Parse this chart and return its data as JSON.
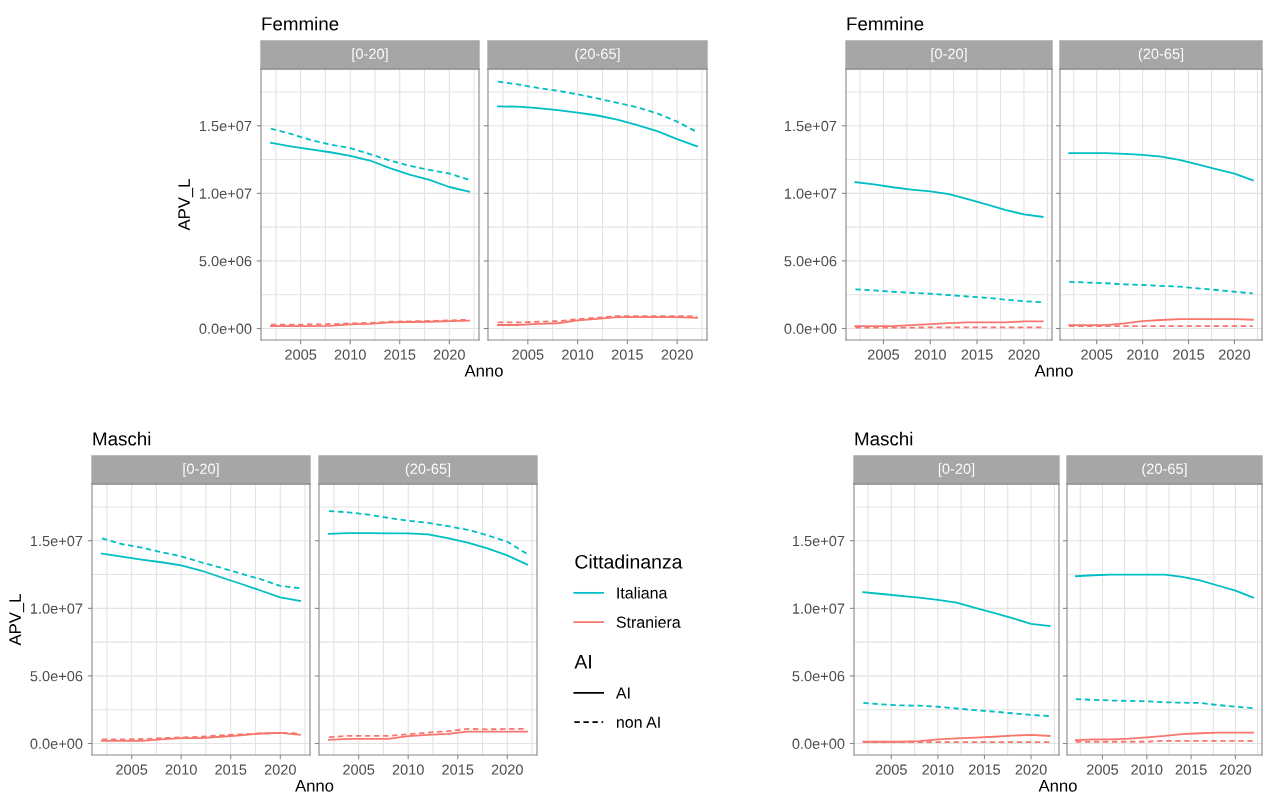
{
  "chart_data": [
    {
      "type": "line",
      "title": "Femmine",
      "subtitle": "[0-20]",
      "xlabel": "Anno",
      "ylabel": "APV_L",
      "x": [
        2002,
        2004,
        2006,
        2008,
        2010,
        2012,
        2014,
        2016,
        2018,
        2020,
        2022
      ],
      "xlim": [
        2001,
        2023
      ],
      "xticks": [
        2005,
        2010,
        2015,
        2020
      ],
      "ylim": [
        -850000,
        19200000
      ],
      "yticks": [
        {
          "value": 0,
          "label": "0.0e+00"
        },
        {
          "value": 5000000,
          "label": "5.0e+06"
        },
        {
          "value": 10000000,
          "label": "1.0e+07"
        },
        {
          "value": 15000000,
          "label": "1.5e+07"
        }
      ],
      "grid": true,
      "series": [
        {
          "color": "#00bfc4",
          "line_style": "solid",
          "values": [
            13740000,
            13480000,
            13250000,
            13040000,
            12770000,
            12430000,
            11860000,
            11390000,
            11000000,
            10470000,
            10130000
          ]
        },
        {
          "color": "#00bfc4",
          "line_style": "dashed",
          "values": [
            14790000,
            14400000,
            13950000,
            13610000,
            13350000,
            12900000,
            12430000,
            12040000,
            11730000,
            11470000,
            11000000
          ]
        },
        {
          "color": "#f8766d",
          "line_style": "solid",
          "values": [
            180000,
            180000,
            180000,
            200000,
            300000,
            350000,
            450000,
            480000,
            500000,
            550000,
            580000
          ]
        },
        {
          "color": "#f8766d",
          "line_style": "dashed",
          "values": [
            280000,
            280000,
            300000,
            320000,
            380000,
            420000,
            500000,
            530000,
            560000,
            600000,
            650000
          ]
        }
      ]
    },
    {
      "type": "line",
      "subtitle": "(20-65]",
      "x": [
        2002,
        2004,
        2006,
        2008,
        2010,
        2012,
        2014,
        2016,
        2018,
        2020,
        2022
      ],
      "xlim": [
        2001,
        2023
      ],
      "xticks": [
        2005,
        2010,
        2015,
        2020
      ],
      "ylim": [
        -850000,
        19200000
      ],
      "yticks": [
        0,
        5000000,
        10000000,
        15000000
      ],
      "tick_labels": "x",
      "grid": true,
      "series": [
        {
          "color": "#00bfc4",
          "line_style": "solid",
          "values": [
            16440000,
            16410000,
            16310000,
            16150000,
            15970000,
            15760000,
            15450000,
            15050000,
            14610000,
            14010000,
            13480000
          ]
        },
        {
          "color": "#00bfc4",
          "line_style": "dashed",
          "values": [
            18270000,
            18060000,
            17800000,
            17590000,
            17330000,
            17020000,
            16700000,
            16360000,
            15920000,
            15310000,
            14530000
          ]
        },
        {
          "color": "#f8766d",
          "line_style": "solid",
          "values": [
            260000,
            260000,
            340000,
            390000,
            600000,
            710000,
            840000,
            840000,
            840000,
            840000,
            790000
          ]
        },
        {
          "color": "#f8766d",
          "line_style": "dashed",
          "values": [
            450000,
            450000,
            500000,
            550000,
            680000,
            800000,
            920000,
            920000,
            920000,
            920000,
            900000
          ]
        }
      ]
    },
    {
      "type": "line",
      "title": "Femmine",
      "subtitle": "[0-20]",
      "xlabel": "Anno",
      "x": [
        2002,
        2004,
        2006,
        2008,
        2010,
        2012,
        2014,
        2016,
        2018,
        2020,
        2022
      ],
      "xlim": [
        2001,
        2023
      ],
      "xticks": [
        2005,
        2010,
        2015,
        2020
      ],
      "ylim": [
        -850000,
        19200000
      ],
      "yticks": [
        {
          "value": 0,
          "label": "0.0e+00"
        },
        {
          "value": 5000000,
          "label": "5.0e+06"
        },
        {
          "value": 10000000,
          "label": "1.0e+07"
        },
        {
          "value": 15000000,
          "label": "1.5e+07"
        }
      ],
      "grid": true,
      "series": [
        {
          "color": "#00bfc4",
          "line_style": "solid",
          "values": [
            10830000,
            10660000,
            10450000,
            10280000,
            10150000,
            9950000,
            9570000,
            9190000,
            8770000,
            8440000,
            8260000
          ]
        },
        {
          "color": "#00bfc4",
          "line_style": "dashed",
          "values": [
            2900000,
            2820000,
            2720000,
            2640000,
            2570000,
            2470000,
            2370000,
            2270000,
            2140000,
            2020000,
            1940000
          ]
        },
        {
          "color": "#f8766d",
          "line_style": "solid",
          "values": [
            180000,
            180000,
            180000,
            250000,
            330000,
            400000,
            450000,
            450000,
            450000,
            530000,
            530000
          ]
        },
        {
          "color": "#f8766d",
          "line_style": "dashed",
          "values": [
            70000,
            70000,
            70000,
            70000,
            80000,
            80000,
            80000,
            80000,
            80000,
            80000,
            80000
          ]
        }
      ]
    },
    {
      "type": "line",
      "subtitle": "(20-65]",
      "x": [
        2002,
        2004,
        2006,
        2008,
        2010,
        2012,
        2014,
        2016,
        2018,
        2020,
        2022
      ],
      "xlim": [
        2001,
        2023
      ],
      "xticks": [
        2005,
        2010,
        2015,
        2020
      ],
      "ylim": [
        -850000,
        19200000
      ],
      "yticks": [
        0,
        5000000,
        10000000,
        15000000
      ],
      "tick_labels": "x",
      "grid": true,
      "series": [
        {
          "color": "#00bfc4",
          "line_style": "solid",
          "values": [
            12970000,
            12970000,
            12970000,
            12920000,
            12850000,
            12720000,
            12470000,
            12150000,
            11790000,
            11460000,
            10960000
          ]
        },
        {
          "color": "#00bfc4",
          "line_style": "dashed",
          "values": [
            3450000,
            3400000,
            3350000,
            3270000,
            3220000,
            3150000,
            3100000,
            2970000,
            2850000,
            2720000,
            2600000
          ]
        },
        {
          "color": "#f8766d",
          "line_style": "solid",
          "values": [
            250000,
            250000,
            250000,
            380000,
            550000,
            630000,
            700000,
            700000,
            700000,
            700000,
            650000
          ]
        },
        {
          "color": "#f8766d",
          "line_style": "dashed",
          "values": [
            180000,
            180000,
            180000,
            180000,
            180000,
            180000,
            180000,
            180000,
            180000,
            180000,
            180000
          ]
        }
      ]
    },
    {
      "type": "line",
      "title": "Maschi",
      "subtitle": "[0-20]",
      "xlabel": "Anno",
      "ylabel": "APV_L",
      "x": [
        2002,
        2004,
        2006,
        2008,
        2010,
        2012,
        2014,
        2016,
        2018,
        2020,
        2022
      ],
      "xlim": [
        2001,
        2023
      ],
      "xticks": [
        2005,
        2010,
        2015,
        2020
      ],
      "ylim": [
        -850000,
        19200000
      ],
      "yticks": [
        {
          "value": 0,
          "label": "0.0e+00"
        },
        {
          "value": 5000000,
          "label": "5.0e+06"
        },
        {
          "value": 10000000,
          "label": "1.0e+07"
        },
        {
          "value": 15000000,
          "label": "1.5e+07"
        }
      ],
      "grid": true,
      "series": [
        {
          "color": "#00bfc4",
          "line_style": "solid",
          "values": [
            14050000,
            13820000,
            13610000,
            13410000,
            13180000,
            12800000,
            12300000,
            11820000,
            11320000,
            10810000,
            10540000
          ]
        },
        {
          "color": "#00bfc4",
          "line_style": "dashed",
          "values": [
            15170000,
            14760000,
            14490000,
            14160000,
            13850000,
            13410000,
            13010000,
            12570000,
            12160000,
            11660000,
            11490000
          ]
        },
        {
          "color": "#f8766d",
          "line_style": "solid",
          "values": [
            200000,
            200000,
            200000,
            300000,
            400000,
            400000,
            500000,
            600000,
            740000,
            780000,
            640000
          ]
        },
        {
          "color": "#f8766d",
          "line_style": "dashed",
          "values": [
            300000,
            300000,
            330000,
            400000,
            450000,
            500000,
            600000,
            680000,
            740000,
            780000,
            740000
          ]
        }
      ]
    },
    {
      "type": "line",
      "subtitle": "(20-65]",
      "x": [
        2002,
        2004,
        2006,
        2008,
        2010,
        2012,
        2014,
        2016,
        2018,
        2020,
        2022
      ],
      "xlim": [
        2001,
        2023
      ],
      "xticks": [
        2005,
        2010,
        2015,
        2020
      ],
      "ylim": [
        -850000,
        19200000
      ],
      "yticks": [
        0,
        5000000,
        10000000,
        15000000
      ],
      "tick_labels": "x",
      "grid": true,
      "series": [
        {
          "color": "#00bfc4",
          "line_style": "solid",
          "values": [
            15510000,
            15570000,
            15570000,
            15540000,
            15540000,
            15470000,
            15200000,
            14860000,
            14430000,
            13920000,
            13240000
          ]
        },
        {
          "color": "#00bfc4",
          "line_style": "dashed",
          "values": [
            17200000,
            17100000,
            16930000,
            16690000,
            16490000,
            16320000,
            16080000,
            15810000,
            15410000,
            14930000,
            14020000
          ]
        },
        {
          "color": "#f8766d",
          "line_style": "solid",
          "values": [
            270000,
            340000,
            340000,
            340000,
            540000,
            640000,
            710000,
            880000,
            880000,
            880000,
            880000
          ]
        },
        {
          "color": "#f8766d",
          "line_style": "dashed",
          "values": [
            470000,
            570000,
            570000,
            570000,
            680000,
            810000,
            910000,
            1080000,
            1050000,
            1080000,
            1080000
          ]
        }
      ]
    },
    {
      "type": "line",
      "title": "Maschi",
      "subtitle": "[0-20]",
      "xlabel": "Anno",
      "x": [
        2002,
        2004,
        2006,
        2008,
        2010,
        2012,
        2014,
        2016,
        2018,
        2020,
        2022
      ],
      "xlim": [
        2001,
        2023
      ],
      "xticks": [
        2005,
        2010,
        2015,
        2020
      ],
      "ylim": [
        -850000,
        19200000
      ],
      "yticks": [
        {
          "value": 0,
          "label": "0.0e+00"
        },
        {
          "value": 5000000,
          "label": "5.0e+06"
        },
        {
          "value": 10000000,
          "label": "1.0e+07"
        },
        {
          "value": 15000000,
          "label": "1.5e+07"
        }
      ],
      "grid": true,
      "series": [
        {
          "color": "#00bfc4",
          "line_style": "solid",
          "values": [
            11190000,
            11060000,
            10930000,
            10800000,
            10620000,
            10420000,
            10040000,
            9660000,
            9280000,
            8850000,
            8690000
          ]
        },
        {
          "color": "#00bfc4",
          "line_style": "dashed",
          "values": [
            3000000,
            2900000,
            2820000,
            2800000,
            2720000,
            2590000,
            2470000,
            2360000,
            2240000,
            2110000,
            2030000
          ]
        },
        {
          "color": "#f8766d",
          "line_style": "solid",
          "values": [
            130000,
            130000,
            130000,
            180000,
            300000,
            380000,
            430000,
            500000,
            580000,
            640000,
            560000
          ]
        },
        {
          "color": "#f8766d",
          "line_style": "dashed",
          "values": [
            100000,
            100000,
            100000,
            100000,
            100000,
            100000,
            100000,
            100000,
            100000,
            100000,
            100000
          ]
        }
      ]
    },
    {
      "type": "line",
      "subtitle": "(20-65]",
      "x": [
        2002,
        2004,
        2006,
        2008,
        2010,
        2012,
        2014,
        2016,
        2018,
        2020,
        2022
      ],
      "xlim": [
        2001,
        2023
      ],
      "xticks": [
        2005,
        2010,
        2015,
        2020
      ],
      "ylim": [
        -850000,
        19200000
      ],
      "yticks": [
        0,
        5000000,
        10000000,
        15000000
      ],
      "tick_labels": "x",
      "grid": true,
      "series": [
        {
          "color": "#00bfc4",
          "line_style": "solid",
          "values": [
            12380000,
            12450000,
            12500000,
            12500000,
            12500000,
            12500000,
            12330000,
            12070000,
            11690000,
            11310000,
            10800000
          ]
        },
        {
          "color": "#00bfc4",
          "line_style": "dashed",
          "values": [
            3280000,
            3230000,
            3180000,
            3150000,
            3130000,
            3050000,
            3020000,
            3000000,
            2850000,
            2720000,
            2620000
          ]
        },
        {
          "color": "#f8766d",
          "line_style": "solid",
          "values": [
            250000,
            300000,
            300000,
            360000,
            460000,
            560000,
            690000,
            760000,
            810000,
            810000,
            810000
          ]
        },
        {
          "color": "#f8766d",
          "line_style": "dashed",
          "values": [
            130000,
            130000,
            130000,
            130000,
            130000,
            200000,
            200000,
            200000,
            200000,
            200000,
            200000
          ]
        }
      ]
    },
    {
      "type": "other",
      "legend_title": "Cittadinanza",
      "legend": "left",
      "series": [
        {
          "name": "Italiana",
          "color": "#00bfc4",
          "line_style": "solid"
        },
        {
          "name": "Straniera",
          "color": "#f8766d",
          "line_style": "solid"
        }
      ]
    },
    {
      "type": "other",
      "legend_title": "AI",
      "legend": "left",
      "series": [
        {
          "name": "AI",
          "color": "#000000",
          "line_style": "solid"
        },
        {
          "name": "non AI",
          "color": "#000000",
          "line_style": "dashed"
        }
      ]
    }
  ]
}
